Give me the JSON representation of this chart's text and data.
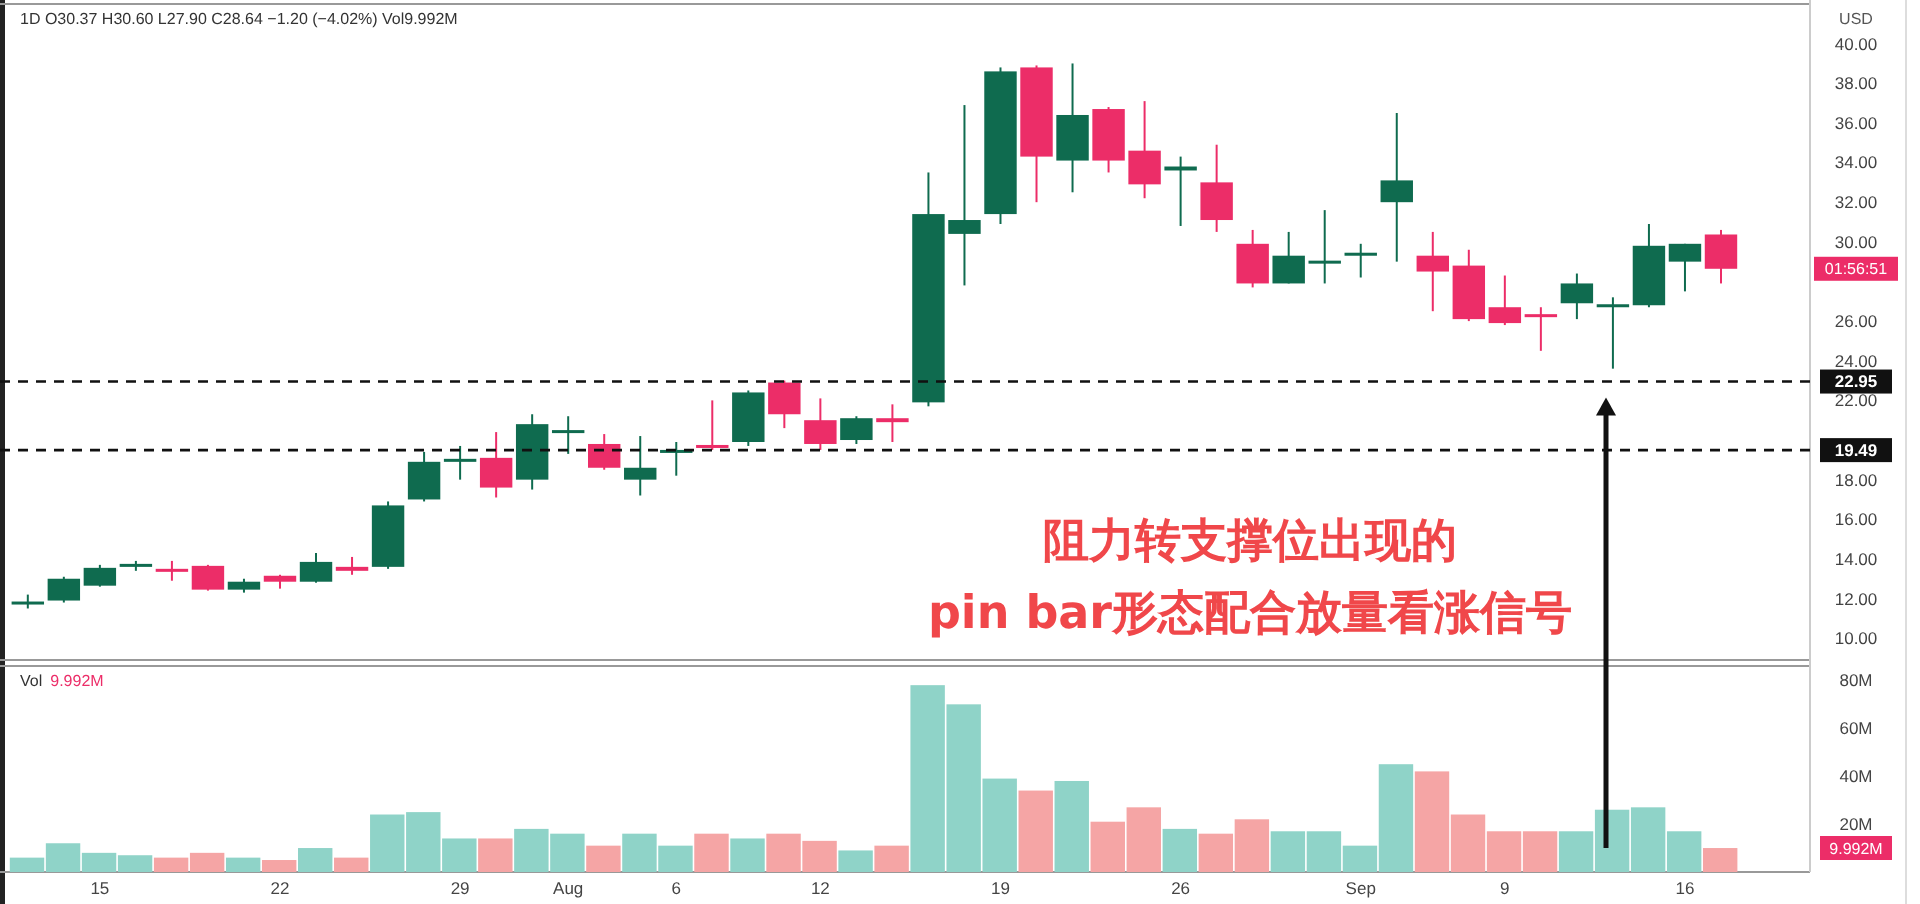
{
  "chart_data": [
    {
      "type": "candlestick",
      "annotations": [
        "1D  O30.37  H30.60  L27.90  C28.64  −1.20 (−4.02%)  Vol9.992M",
        "USD",
        "01:56:51",
        "阻力转支撑位出现的",
        "pin bar形态配合放量看涨信号"
      ],
      "categories": [
        null,
        null,
        null,
        null,
        null,
        null,
        null,
        null,
        null,
        null,
        null,
        null,
        null,
        null,
        null,
        null,
        null,
        null,
        null,
        null,
        null,
        null,
        null,
        null,
        null,
        null,
        null,
        null,
        null,
        null,
        null,
        null,
        null,
        null,
        null,
        null,
        null,
        null,
        null,
        null,
        null,
        null,
        null,
        null,
        null,
        null,
        null,
        null
      ],
      "ohlc": [
        [
          11.8,
          12.2,
          11.5,
          11.85
        ],
        [
          11.9,
          13.1,
          11.8,
          13.0
        ],
        [
          12.65,
          13.7,
          12.6,
          13.55
        ],
        [
          13.7,
          13.9,
          13.4,
          13.75
        ],
        [
          13.5,
          13.9,
          12.9,
          13.45
        ],
        [
          13.65,
          13.7,
          12.4,
          12.45
        ],
        [
          12.45,
          13.0,
          12.3,
          12.85
        ],
        [
          13.15,
          13.2,
          12.5,
          12.85
        ],
        [
          12.85,
          14.3,
          12.8,
          13.85
        ],
        [
          13.6,
          14.1,
          13.2,
          13.4
        ],
        [
          13.6,
          16.9,
          13.5,
          16.7
        ],
        [
          17.0,
          19.4,
          16.9,
          18.9
        ],
        [
          18.95,
          19.7,
          18.0,
          19.05
        ],
        [
          19.1,
          20.4,
          17.1,
          17.6
        ],
        [
          18.0,
          21.3,
          17.5,
          20.8
        ],
        [
          20.45,
          21.2,
          19.3,
          20.5
        ],
        [
          19.8,
          20.3,
          18.5,
          18.6
        ],
        [
          18.0,
          20.2,
          17.2,
          18.6
        ],
        [
          19.4,
          19.9,
          18.2,
          19.5
        ],
        [
          19.75,
          22.0,
          19.5,
          19.65
        ],
        [
          19.9,
          22.5,
          19.7,
          22.4
        ],
        [
          22.9,
          23.0,
          20.6,
          21.3
        ],
        [
          21.0,
          22.1,
          19.5,
          19.8
        ],
        [
          20.0,
          21.2,
          19.8,
          21.1
        ],
        [
          21.1,
          21.8,
          19.9,
          20.9
        ],
        [
          21.9,
          33.5,
          21.7,
          31.4
        ],
        [
          30.4,
          36.9,
          27.8,
          31.1
        ],
        [
          31.4,
          38.8,
          30.9,
          38.6
        ],
        [
          38.8,
          38.9,
          32.0,
          34.3
        ],
        [
          34.1,
          39.0,
          32.5,
          36.4
        ],
        [
          36.7,
          36.8,
          33.5,
          34.1
        ],
        [
          34.6,
          37.1,
          32.2,
          32.9
        ],
        [
          33.6,
          34.3,
          30.8,
          33.8
        ],
        [
          33.0,
          34.9,
          30.5,
          31.1
        ],
        [
          29.9,
          30.6,
          27.7,
          27.9
        ],
        [
          27.9,
          30.5,
          27.9,
          29.3
        ],
        [
          28.95,
          31.6,
          27.9,
          29.05
        ],
        [
          29.3,
          29.9,
          28.2,
          29.45
        ],
        [
          32.0,
          36.5,
          29.0,
          33.1
        ],
        [
          29.3,
          30.5,
          26.5,
          28.5
        ],
        [
          28.8,
          29.6,
          26.0,
          26.1
        ],
        [
          26.7,
          28.3,
          25.8,
          25.9
        ],
        [
          26.35,
          26.7,
          24.5,
          26.25
        ],
        [
          26.9,
          28.4,
          26.1,
          27.9
        ],
        [
          26.75,
          27.2,
          23.6,
          26.85
        ],
        [
          26.8,
          30.9,
          26.7,
          29.8
        ],
        [
          29.0,
          29.9,
          27.5,
          29.9
        ],
        [
          30.37,
          30.6,
          27.9,
          28.64
        ]
      ],
      "colors": [
        "#0f6b4f",
        "#0f6b4f",
        "#0f6b4f",
        "#0f6b4f",
        "#ec2d68",
        "#ec2d68",
        "#0f6b4f",
        "#ec2d68",
        "#0f6b4f",
        "#ec2d68",
        "#0f6b4f",
        "#0f6b4f",
        "#0f6b4f",
        "#ec2d68",
        "#0f6b4f",
        "#0f6b4f",
        "#ec2d68",
        "#0f6b4f",
        "#0f6b4f",
        "#ec2d68",
        "#0f6b4f",
        "#ec2d68",
        "#ec2d68",
        "#0f6b4f",
        "#ec2d68",
        "#0f6b4f",
        "#0f6b4f",
        "#0f6b4f",
        "#ec2d68",
        "#0f6b4f",
        "#ec2d68",
        "#ec2d68",
        "#0f6b4f",
        "#ec2d68",
        "#ec2d68",
        "#0f6b4f",
        "#0f6b4f",
        "#0f6b4f",
        "#0f6b4f",
        "#ec2d68",
        "#ec2d68",
        "#ec2d68",
        "#ec2d68",
        "#0f6b4f",
        "#0f6b4f",
        "#0f6b4f",
        "#0f6b4f",
        "#ec2d68"
      ],
      "ylim": [
        8.9,
        42
      ],
      "yticks": [
        {
          "value": 10,
          "label": "10.00"
        },
        {
          "value": 12,
          "label": "12.00"
        },
        {
          "value": 14,
          "label": "14.00"
        },
        {
          "value": 16,
          "label": "16.00"
        },
        {
          "value": 18,
          "label": "18.00"
        },
        {
          "value": 22,
          "label": "22.00"
        },
        {
          "value": 24,
          "label": "24.00"
        },
        {
          "value": 26,
          "label": "26.00"
        },
        {
          "value": 30,
          "label": "30.00"
        },
        {
          "value": 32,
          "label": "32.00"
        },
        {
          "value": 34,
          "label": "34.00"
        },
        {
          "value": 36,
          "label": "36.00"
        },
        {
          "value": 38,
          "label": "38.00"
        },
        {
          "value": 40,
          "label": "40.00"
        }
      ],
      "ref_lines": [
        {
          "axis": "y",
          "value": 22.95,
          "label": "22.95",
          "color": "#111111",
          "line_style": "dashed"
        },
        {
          "axis": "y",
          "value": 19.49,
          "label": "19.49",
          "color": "#111111",
          "line_style": "dashed"
        }
      ],
      "tick_labels": "y"
    },
    {
      "type": "bar",
      "annotations": [
        "Vol",
        "9.992M",
        "9.992M"
      ],
      "categories": [
        null,
        null,
        "15",
        null,
        null,
        null,
        null,
        "22",
        null,
        null,
        null,
        null,
        "29",
        null,
        null,
        "Aug",
        null,
        null,
        "6",
        null,
        null,
        null,
        "12",
        null,
        null,
        null,
        null,
        "19",
        null,
        null,
        null,
        null,
        "26",
        null,
        null,
        null,
        null,
        "Sep",
        null,
        null,
        null,
        "9",
        null,
        null,
        null,
        null,
        "16",
        null
      ],
      "values": [
        6,
        12,
        8,
        7,
        6,
        8,
        6,
        5,
        10,
        6,
        24,
        25,
        14,
        14,
        18,
        16,
        11,
        16,
        11,
        16,
        14,
        16,
        13,
        9,
        11,
        78,
        70,
        39,
        34,
        38,
        21,
        27,
        18,
        16,
        22,
        17,
        17,
        11,
        45,
        42,
        24,
        17,
        17,
        17,
        26,
        27,
        17,
        10
      ],
      "colors": [
        "#8fd3c8",
        "#8fd3c8",
        "#8fd3c8",
        "#8fd3c8",
        "#f5a5a5",
        "#f5a5a5",
        "#8fd3c8",
        "#f5a5a5",
        "#8fd3c8",
        "#f5a5a5",
        "#8fd3c8",
        "#8fd3c8",
        "#8fd3c8",
        "#f5a5a5",
        "#8fd3c8",
        "#8fd3c8",
        "#f5a5a5",
        "#8fd3c8",
        "#8fd3c8",
        "#f5a5a5",
        "#8fd3c8",
        "#f5a5a5",
        "#f5a5a5",
        "#8fd3c8",
        "#f5a5a5",
        "#8fd3c8",
        "#8fd3c8",
        "#8fd3c8",
        "#f5a5a5",
        "#8fd3c8",
        "#f5a5a5",
        "#f5a5a5",
        "#8fd3c8",
        "#f5a5a5",
        "#f5a5a5",
        "#8fd3c8",
        "#8fd3c8",
        "#8fd3c8",
        "#8fd3c8",
        "#f5a5a5",
        "#f5a5a5",
        "#f5a5a5",
        "#f5a5a5",
        "#8fd3c8",
        "#8fd3c8",
        "#8fd3c8",
        "#8fd3c8",
        "#f5a5a5"
      ],
      "ylim": [
        0,
        86
      ],
      "yticks": [
        {
          "value": 20,
          "label": "20M"
        },
        {
          "value": 40,
          "label": "40M"
        },
        {
          "value": 60,
          "label": "60M"
        },
        {
          "value": 80,
          "label": "80M"
        }
      ]
    }
  ]
}
